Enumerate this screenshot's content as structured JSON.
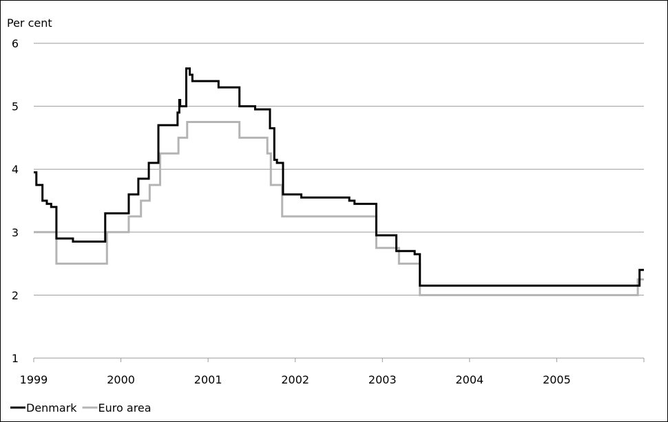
{
  "chart_data": {
    "type": "line",
    "title": "",
    "xlabel": "",
    "ylabel": "Per cent",
    "ylim": [
      1,
      6
    ],
    "xlim": [
      1999.0,
      2006.0
    ],
    "yticks": [
      "1",
      "2",
      "3",
      "4",
      "5",
      "6"
    ],
    "xticks": [
      "1999",
      "2000",
      "2001",
      "2002",
      "2003",
      "2004",
      "2005"
    ],
    "grid": "horizontal",
    "legend_position": "bottom-left",
    "series": [
      {
        "name": "Denmark",
        "color": "#000000",
        "step": true,
        "points": [
          [
            1999.0,
            3.95
          ],
          [
            1999.03,
            3.75
          ],
          [
            1999.1,
            3.5
          ],
          [
            1999.15,
            3.45
          ],
          [
            1999.2,
            3.4
          ],
          [
            1999.26,
            2.9
          ],
          [
            1999.45,
            2.85
          ],
          [
            1999.82,
            3.3
          ],
          [
            2000.09,
            3.6
          ],
          [
            2000.2,
            3.85
          ],
          [
            2000.32,
            4.1
          ],
          [
            2000.43,
            4.7
          ],
          [
            2000.65,
            4.9
          ],
          [
            2000.67,
            5.1
          ],
          [
            2000.68,
            5.0
          ],
          [
            2000.75,
            5.6
          ],
          [
            2000.79,
            5.5
          ],
          [
            2000.82,
            5.4
          ],
          [
            2001.12,
            5.3
          ],
          [
            2001.36,
            5.0
          ],
          [
            2001.54,
            4.95
          ],
          [
            2001.71,
            4.65
          ],
          [
            2001.76,
            4.15
          ],
          [
            2001.79,
            4.1
          ],
          [
            2001.86,
            3.6
          ],
          [
            2002.07,
            3.55
          ],
          [
            2002.62,
            3.5
          ],
          [
            2002.68,
            3.45
          ],
          [
            2002.93,
            2.95
          ],
          [
            2003.16,
            2.7
          ],
          [
            2003.37,
            2.65
          ],
          [
            2003.43,
            2.15
          ],
          [
            2005.95,
            2.4
          ],
          [
            2006.0,
            2.4
          ]
        ]
      },
      {
        "name": "Euro area",
        "color": "#b4b4b4",
        "step": true,
        "points": [
          [
            1999.0,
            3.0
          ],
          [
            1999.26,
            2.5
          ],
          [
            1999.84,
            3.0
          ],
          [
            2000.09,
            3.25
          ],
          [
            2000.23,
            3.5
          ],
          [
            2000.33,
            3.75
          ],
          [
            2000.45,
            4.25
          ],
          [
            2000.66,
            4.5
          ],
          [
            2000.76,
            4.75
          ],
          [
            2001.36,
            4.5
          ],
          [
            2001.68,
            4.25
          ],
          [
            2001.72,
            3.75
          ],
          [
            2001.85,
            3.25
          ],
          [
            2002.93,
            2.75
          ],
          [
            2003.19,
            2.5
          ],
          [
            2003.43,
            2.0
          ],
          [
            2005.93,
            2.25
          ],
          [
            2006.0,
            2.25
          ]
        ]
      }
    ]
  }
}
